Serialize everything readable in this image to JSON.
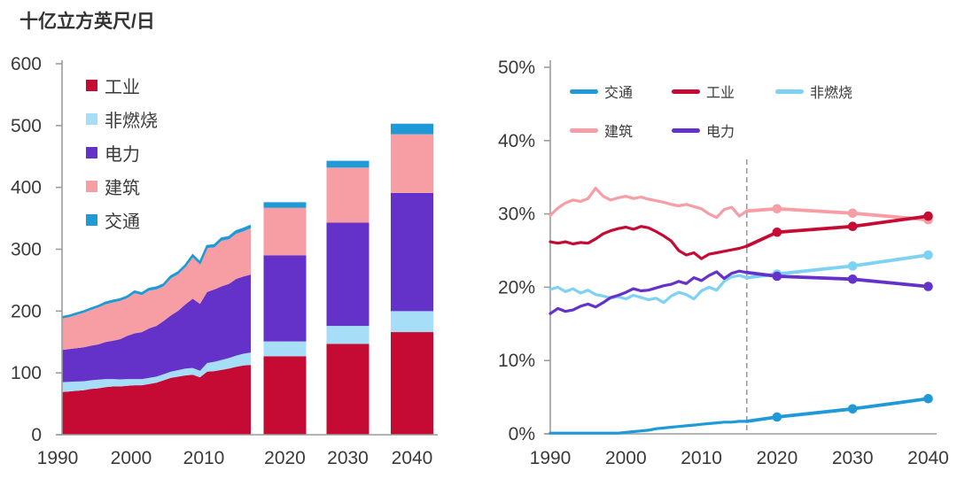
{
  "title": "十亿立方英尺/日",
  "colors": {
    "industry": "#C50A33",
    "non_combustion_area": "#A6DEF8",
    "non_combustion_line": "#7DD2F4",
    "power": "#6432C8",
    "buildings": "#F79DA4",
    "transport": "#1F9AD7",
    "axis": "#9C9C9C",
    "dashed": "#9C9C9C",
    "text": "#3a3a3a"
  },
  "left_legend": {
    "items": [
      {
        "key": "industry",
        "label": "工业"
      },
      {
        "key": "non_combustion",
        "label": "非燃烧"
      },
      {
        "key": "power",
        "label": "电力"
      },
      {
        "key": "buildings",
        "label": "建筑"
      },
      {
        "key": "transport",
        "label": "交通"
      }
    ]
  },
  "right_legend": {
    "rows": [
      [
        {
          "key": "transport",
          "label": "交通"
        },
        {
          "key": "industry",
          "label": "工业"
        },
        {
          "key": "non_combustion",
          "label": "非燃烧"
        }
      ],
      [
        {
          "key": "buildings",
          "label": "建筑"
        },
        {
          "key": "power",
          "label": "电力"
        }
      ]
    ]
  },
  "chart_data": [
    {
      "type": "area",
      "title": "十亿立方英尺/日",
      "ylabel": "十亿立方英尺/日",
      "ylim": [
        0,
        600
      ],
      "yticks": [
        "0",
        "100",
        "200",
        "300",
        "400",
        "500",
        "600"
      ],
      "xticks": [
        "1990",
        "2000",
        "2010",
        "2020",
        "2030",
        "2040"
      ],
      "history_start_year": 1990,
      "history_end_year": 2016,
      "stack_order": [
        "industry",
        "non_combustion",
        "power",
        "buildings",
        "transport"
      ],
      "area_series": {
        "industry": [
          69,
          70,
          71,
          72,
          74,
          75,
          77,
          78,
          78,
          79,
          80,
          80,
          82,
          84,
          88,
          92,
          94,
          96,
          97,
          93,
          102,
          103,
          105,
          107,
          110,
          112,
          113
        ],
        "non_combustion": [
          16,
          15.5,
          15,
          14.5,
          14,
          14,
          13,
          12,
          11.5,
          11,
          10,
          10,
          10,
          10,
          10,
          10,
          10.5,
          11,
          11,
          10.5,
          14,
          15,
          16,
          17,
          18,
          19,
          20
        ],
        "power": [
          52,
          53,
          54,
          55,
          56,
          57,
          60,
          62,
          65,
          70,
          74,
          76,
          80,
          82,
          86,
          91,
          96,
          104,
          112,
          108,
          115,
          117,
          119,
          120,
          124,
          125,
          126
        ],
        "buildings": [
          51,
          52,
          54,
          56,
          58,
          60,
          61,
          62,
          62,
          61,
          65,
          60,
          61,
          59,
          56,
          60,
          59,
          60,
          67,
          64,
          71,
          68,
          74,
          72,
          73,
          73,
          75
        ],
        "transport": [
          2,
          2,
          2,
          2,
          2,
          2,
          2.5,
          2.5,
          2.5,
          2.5,
          2.5,
          2.5,
          3,
          3,
          3,
          3,
          3,
          3,
          3,
          3,
          3,
          3.5,
          3.5,
          3.5,
          4,
          4,
          4
        ]
      },
      "bars": [
        {
          "year": 2020,
          "industry": 127,
          "non_combustion": 24,
          "power": 139,
          "buildings": 77,
          "transport": 9
        },
        {
          "year": 2030,
          "industry": 147,
          "non_combustion": 29,
          "power": 167,
          "buildings": 89,
          "transport": 11
        },
        {
          "year": 2040,
          "industry": 166,
          "non_combustion": 34,
          "power": 191,
          "buildings": 95,
          "transport": 17
        }
      ]
    },
    {
      "type": "line",
      "ylim": [
        0,
        50
      ],
      "yticks": [
        "0%",
        "10%",
        "20%",
        "30%",
        "40%",
        "50%"
      ],
      "xticks": [
        "1990",
        "2000",
        "2010",
        "2020",
        "2030",
        "2040"
      ],
      "history_start_year": 1990,
      "history_end_year": 2016,
      "dashed_year": 2016,
      "draw_order": [
        "buildings",
        "industry",
        "non_combustion",
        "power",
        "transport"
      ],
      "series": {
        "transport": {
          "history": [
            0.1,
            0.1,
            0.1,
            0.1,
            0.1,
            0.1,
            0.1,
            0.1,
            0.1,
            0.1,
            0.2,
            0.3,
            0.4,
            0.5,
            0.7,
            0.8,
            0.9,
            1.0,
            1.1,
            1.2,
            1.3,
            1.4,
            1.5,
            1.6,
            1.6,
            1.7,
            1.7
          ],
          "projection": [
            [
              2020,
              2.3
            ],
            [
              2030,
              3.4
            ],
            [
              2040,
              4.8
            ]
          ]
        },
        "industry": {
          "history": [
            26.2,
            26.0,
            26.2,
            25.9,
            26.1,
            26.0,
            26.6,
            27.3,
            27.7,
            28.0,
            28.2,
            27.9,
            28.3,
            28.1,
            27.6,
            27.0,
            26.3,
            25.0,
            24.4,
            24.7,
            23.9,
            24.5,
            24.7,
            24.9,
            25.1,
            25.3,
            25.6
          ],
          "projection": [
            [
              2020,
              27.5
            ],
            [
              2030,
              28.3
            ],
            [
              2040,
              29.7
            ]
          ]
        },
        "non_combustion": {
          "history": [
            19.7,
            20.0,
            19.4,
            19.8,
            19.2,
            19.6,
            19.0,
            18.8,
            18.5,
            18.7,
            18.4,
            18.9,
            18.6,
            18.3,
            18.5,
            17.9,
            18.8,
            19.3,
            19.0,
            18.4,
            19.5,
            20.0,
            19.6,
            20.8,
            21.4,
            21.6,
            21.3
          ],
          "projection": [
            [
              2020,
              21.8
            ],
            [
              2030,
              22.9
            ],
            [
              2040,
              24.4
            ]
          ]
        },
        "buildings": {
          "history": [
            29.8,
            30.8,
            31.5,
            31.9,
            31.7,
            32.1,
            33.5,
            32.4,
            31.9,
            32.2,
            32.4,
            32.1,
            32.3,
            32.0,
            31.8,
            31.6,
            31.3,
            31.1,
            31.3,
            31.0,
            30.7,
            30.0,
            29.5,
            30.6,
            30.9,
            29.7,
            30.4
          ],
          "projection": [
            [
              2020,
              30.7
            ],
            [
              2030,
              30.1
            ],
            [
              2040,
              29.2
            ]
          ]
        },
        "power": {
          "history": [
            16.4,
            17.1,
            16.7,
            16.9,
            17.4,
            17.7,
            17.3,
            17.9,
            18.6,
            18.9,
            19.3,
            19.8,
            19.5,
            19.6,
            19.9,
            20.2,
            20.4,
            20.8,
            20.5,
            21.3,
            20.9,
            21.6,
            22.1,
            21.2,
            21.9,
            22.2,
            22.0
          ],
          "projection": [
            [
              2020,
              21.5
            ],
            [
              2030,
              21.1
            ],
            [
              2040,
              20.1
            ]
          ]
        }
      }
    }
  ]
}
